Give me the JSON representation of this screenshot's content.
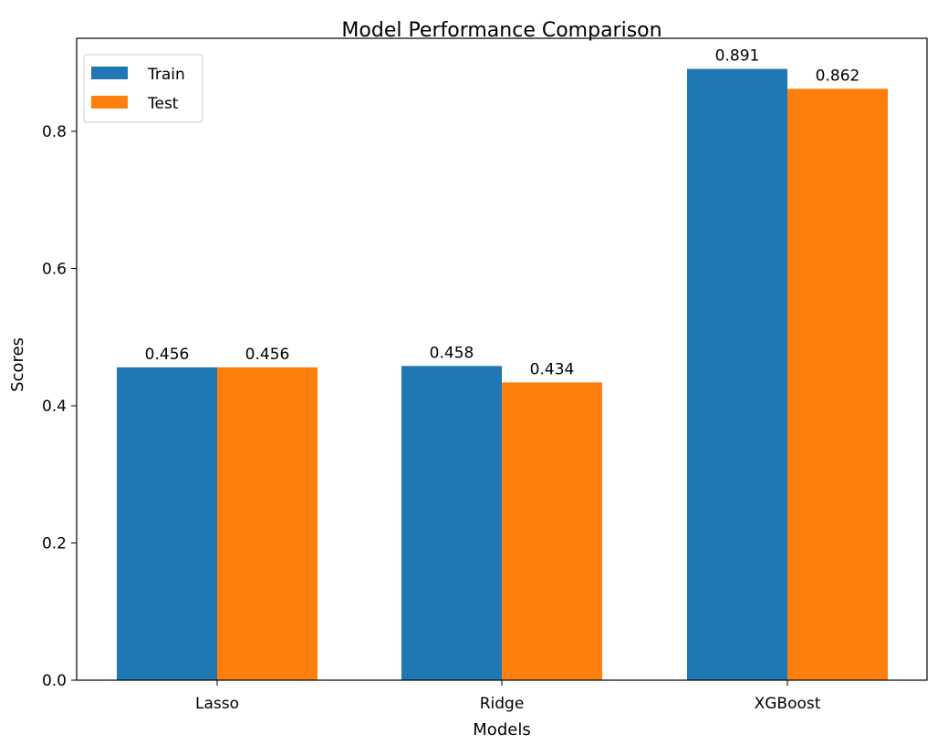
{
  "chart_data": {
    "type": "bar",
    "title": "Model Performance Comparison",
    "xlabel": "Models",
    "ylabel": "Scores",
    "categories": [
      "Lasso",
      "Ridge",
      "XGBoost"
    ],
    "series": [
      {
        "name": "Train",
        "color": "#1f77b4",
        "values": [
          0.456,
          0.458,
          0.891
        ],
        "labels": [
          "0.456",
          "0.458",
          "0.891"
        ]
      },
      {
        "name": "Test",
        "color": "#ff7f0e",
        "values": [
          0.456,
          0.434,
          0.862
        ],
        "labels": [
          "0.456",
          "0.434",
          "0.862"
        ]
      }
    ],
    "ylim": [
      0,
      0.9356
    ],
    "yticks": [
      0.0,
      0.2,
      0.4,
      0.6,
      0.8
    ],
    "ytick_labels": [
      "0.0",
      "0.2",
      "0.4",
      "0.6",
      "0.8"
    ],
    "grid": false,
    "legend_position": "top-left"
  }
}
